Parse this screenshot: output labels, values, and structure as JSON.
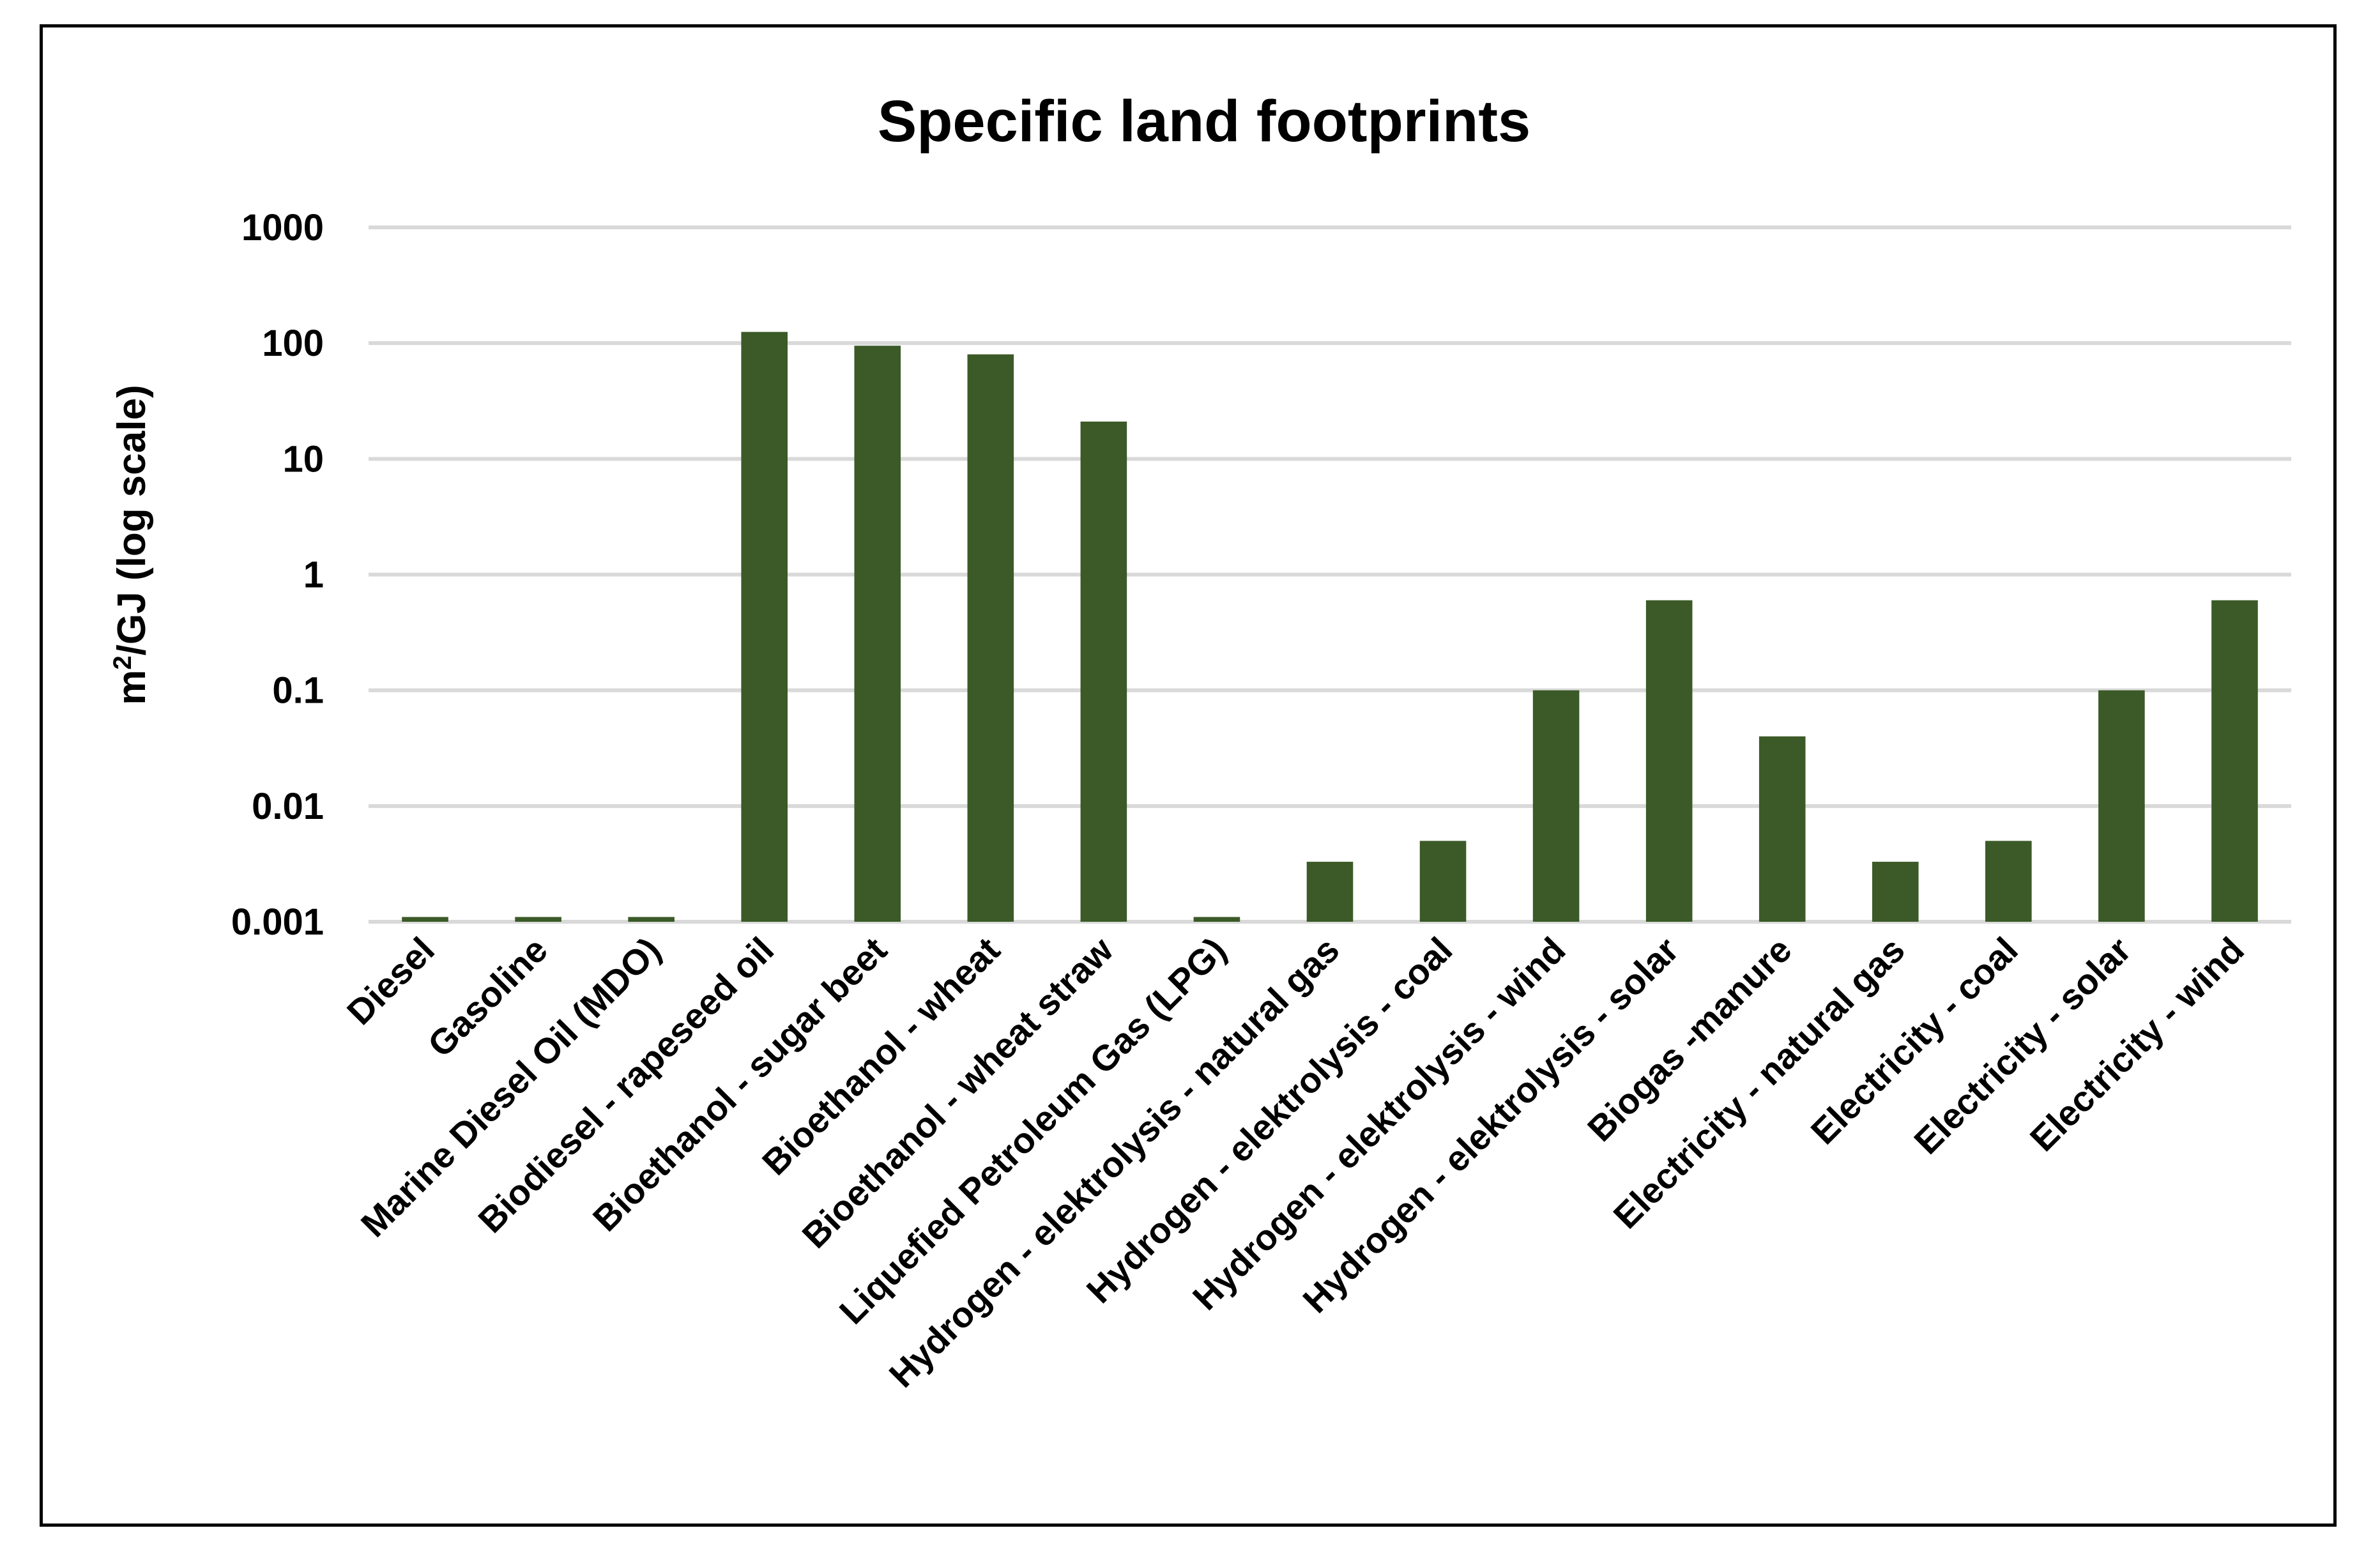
{
  "chart_data": {
    "type": "bar",
    "title": "Specific land footprints",
    "ylabel_base": "m",
    "ylabel_sup": "2",
    "ylabel_rest": "/GJ (log scale)",
    "ylog": true,
    "ylim": [
      0.001,
      1000
    ],
    "yticks": [
      "0.001",
      "0.01",
      "0.1",
      "1",
      "10",
      "100",
      "1000"
    ],
    "ytick_values": [
      0.001,
      0.01,
      0.1,
      1,
      10,
      100,
      1000
    ],
    "grid": true,
    "legend": "none",
    "bar_color": "#3b5a27",
    "categories": [
      "Diesel",
      "Gasoline",
      "Marine Diesel Oil (MDO)",
      "Biodiesel - rapeseed oil",
      "Bioethanol - sugar beet",
      "Bioethanol - wheat",
      "Bioethanol - wheat straw",
      "Liquefied Petroleum Gas (LPG)",
      "Hydrogen - elektrolysis - natural gas",
      "Hydrogen - elektrolysis - coal",
      "Hydrogen - elektrolysis - wind",
      "Hydrogen - elektrolysis - solar",
      "Biogas -manure",
      "Electricity - natural gas",
      "Electricity - coal",
      "Electricity - solar",
      "Electricity - wind"
    ],
    "values": [
      0.0011,
      0.0011,
      0.0011,
      125,
      95,
      80,
      21,
      0.0011,
      0.0033,
      0.005,
      0.1,
      0.6,
      0.04,
      0.0033,
      0.005,
      0.1,
      0.6
    ]
  }
}
